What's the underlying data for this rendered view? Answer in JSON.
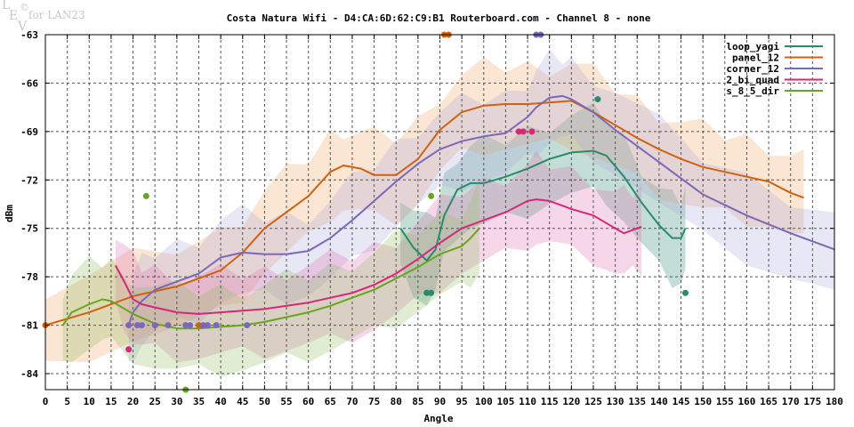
{
  "watermark": {
    "l": "L",
    "e": "E",
    "v": "V",
    "copyright": "©",
    "text": "for LAN23"
  },
  "chart_data": {
    "type": "line",
    "title": "Costa Natura Wifi - D4:CA:6D:62:C9:B1 Routerboard.com - Channel 8 - none",
    "xlabel": "Angle",
    "ylabel": "dBm",
    "xlim": [
      0,
      180
    ],
    "ylim": [
      -85,
      -63
    ],
    "xticks": [
      "0",
      "5",
      "10",
      "15",
      "20",
      "25",
      "30",
      "35",
      "40",
      "45",
      "50",
      "55",
      "60",
      "65",
      "70",
      "75",
      "80",
      "85",
      "90",
      "95",
      "100",
      "105",
      "110",
      "115",
      "120",
      "125",
      "130",
      "135",
      "140",
      "145",
      "150",
      "155",
      "160",
      "165",
      "170",
      "175",
      "180"
    ],
    "yticks": [
      "-63",
      "-66",
      "-69",
      "-72",
      "-75",
      "-78",
      "-81",
      "-84"
    ],
    "grid": true,
    "legend_position": "top-right",
    "series": [
      {
        "name": "loop_yagi",
        "color": "#2a8a6e",
        "x": [
          81,
          84,
          87,
          89,
          91,
          94,
          97,
          100,
          105,
          110,
          115,
          120,
          125,
          128,
          132,
          136,
          140,
          143,
          145,
          146
        ],
        "y": [
          -75,
          -76.2,
          -77,
          -76.3,
          -74.2,
          -72.6,
          -72.2,
          -72.2,
          -71.8,
          -71.3,
          -70.7,
          -70.3,
          -70.2,
          -70.5,
          -71.8,
          -73.4,
          -74.8,
          -75.6,
          -75.6,
          -75
        ],
        "points_x": [
          87,
          88,
          126,
          146
        ],
        "points_y": [
          -79,
          -79,
          -67,
          -79
        ]
      },
      {
        "name": "panel_12",
        "color": "#d0620e",
        "x": [
          0,
          10,
          20,
          30,
          40,
          45,
          50,
          55,
          60,
          65,
          68,
          72,
          75,
          80,
          85,
          90,
          95,
          100,
          105,
          110,
          115,
          120,
          125,
          130,
          135,
          140,
          145,
          150,
          155,
          160,
          165,
          170,
          173
        ],
        "y": [
          -81,
          -80.2,
          -79.2,
          -78.6,
          -77.6,
          -76.5,
          -75,
          -74,
          -73,
          -71.5,
          -71.1,
          -71.3,
          -71.7,
          -71.7,
          -70.7,
          -68.9,
          -67.8,
          -67.4,
          -67.3,
          -67.3,
          -67.2,
          -67.1,
          -67.8,
          -68.6,
          -69.4,
          -70.1,
          -70.7,
          -71.2,
          -71.5,
          -71.8,
          -72.1,
          -72.8,
          -73.1
        ],
        "points_x": [
          0,
          35,
          91,
          92
        ],
        "points_y": [
          -81,
          -81,
          -63,
          -63
        ]
      },
      {
        "name": "corner_12",
        "color": "#7a68b8",
        "x": [
          19,
          20,
          22,
          25,
          30,
          35,
          40,
          45,
          50,
          55,
          60,
          65,
          70,
          75,
          80,
          85,
          90,
          95,
          100,
          105,
          110,
          112,
          115,
          118,
          120,
          125,
          130,
          140,
          150,
          160,
          170,
          180
        ],
        "y": [
          -81,
          -80.2,
          -79.5,
          -78.8,
          -78.3,
          -77.8,
          -76.8,
          -76.5,
          -76.6,
          -76.6,
          -76.4,
          -75.6,
          -74.5,
          -73.3,
          -72.1,
          -71,
          -70.1,
          -69.6,
          -69.3,
          -69.1,
          -68.1,
          -67.5,
          -66.9,
          -66.8,
          -67,
          -67.8,
          -68.9,
          -70.9,
          -72.9,
          -74.2,
          -75.3,
          -76.3
        ],
        "points_x": [
          19,
          21,
          22,
          25,
          28,
          32,
          33,
          36,
          37,
          39,
          46,
          112,
          113
        ],
        "points_y": [
          -81,
          -81,
          -81,
          -81,
          -81,
          -81,
          -81,
          -81,
          -81,
          -81,
          -81,
          -63,
          -63
        ]
      },
      {
        "name": "2_bi_quad",
        "color": "#d6277a",
        "x": [
          16,
          18,
          20,
          22,
          25,
          30,
          35,
          40,
          45,
          50,
          55,
          60,
          65,
          70,
          75,
          80,
          85,
          90,
          95,
          100,
          105,
          110,
          112,
          115,
          120,
          125,
          130,
          132,
          134,
          136
        ],
        "y": [
          -77.3,
          -78.3,
          -79.4,
          -79.7,
          -79.9,
          -80.2,
          -80.3,
          -80.2,
          -80.1,
          -80,
          -79.8,
          -79.6,
          -79.3,
          -79,
          -78.5,
          -77.8,
          -76.9,
          -75.9,
          -75,
          -74.5,
          -74,
          -73.3,
          -73.2,
          -73.3,
          -73.8,
          -74.2,
          -75,
          -75.3,
          -75.1,
          -74.9
        ],
        "points_x": [
          19,
          108,
          109,
          111
        ],
        "points_y": [
          -82.5,
          -69,
          -69,
          -69
        ]
      },
      {
        "name": "s_8_5_dir",
        "color": "#66a61e",
        "x": [
          4,
          6,
          10,
          13,
          15,
          20,
          25,
          30,
          35,
          40,
          45,
          50,
          55,
          60,
          65,
          70,
          75,
          80,
          85,
          90,
          95,
          97,
          99
        ],
        "y": [
          -81,
          -80.2,
          -79.7,
          -79.4,
          -79.5,
          -80.3,
          -80.9,
          -81.2,
          -81.2,
          -81.1,
          -81,
          -80.8,
          -80.5,
          -80.2,
          -79.8,
          -79.3,
          -78.8,
          -78.1,
          -77.4,
          -76.6,
          -76.1,
          -75.6,
          -75
        ],
        "points_x": [
          23,
          32,
          88
        ],
        "points_y": [
          -73,
          -85,
          -73
        ]
      }
    ]
  }
}
